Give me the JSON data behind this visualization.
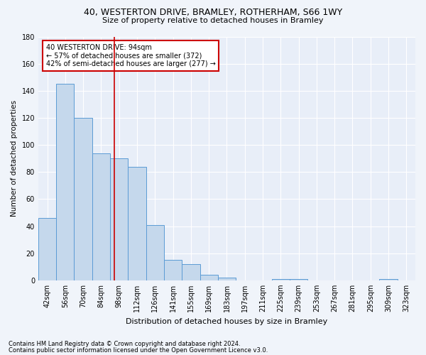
{
  "title1": "40, WESTERTON DRIVE, BRAMLEY, ROTHERHAM, S66 1WY",
  "title2": "Size of property relative to detached houses in Bramley",
  "xlabel": "Distribution of detached houses by size in Bramley",
  "ylabel": "Number of detached properties",
  "bins": [
    "42sqm",
    "56sqm",
    "70sqm",
    "84sqm",
    "98sqm",
    "112sqm",
    "126sqm",
    "141sqm",
    "155sqm",
    "169sqm",
    "183sqm",
    "197sqm",
    "211sqm",
    "225sqm",
    "239sqm",
    "253sqm",
    "267sqm",
    "281sqm",
    "295sqm",
    "309sqm",
    "323sqm"
  ],
  "values": [
    46,
    145,
    120,
    94,
    90,
    84,
    41,
    15,
    12,
    4,
    2,
    0,
    0,
    1,
    1,
    0,
    0,
    0,
    0,
    1,
    0
  ],
  "bar_color": "#c5d8ec",
  "bar_edge_color": "#5b9bd5",
  "vline_x_index": 3.72,
  "vline_color": "#cc0000",
  "annotation_text": "40 WESTERTON DRIVE: 94sqm\n← 57% of detached houses are smaller (372)\n42% of semi-detached houses are larger (277) →",
  "annotation_box_color": "white",
  "annotation_box_edge_color": "#cc0000",
  "ylim": [
    0,
    180
  ],
  "yticks": [
    0,
    20,
    40,
    60,
    80,
    100,
    120,
    140,
    160,
    180
  ],
  "footer1": "Contains HM Land Registry data © Crown copyright and database right 2024.",
  "footer2": "Contains public sector information licensed under the Open Government Licence v3.0.",
  "bg_color": "#f0f4fa",
  "plot_bg_color": "#e8eef8",
  "title1_fontsize": 9,
  "title2_fontsize": 8,
  "ylabel_fontsize": 7.5,
  "xlabel_fontsize": 8,
  "tick_fontsize": 7,
  "annot_fontsize": 7,
  "footer_fontsize": 6
}
